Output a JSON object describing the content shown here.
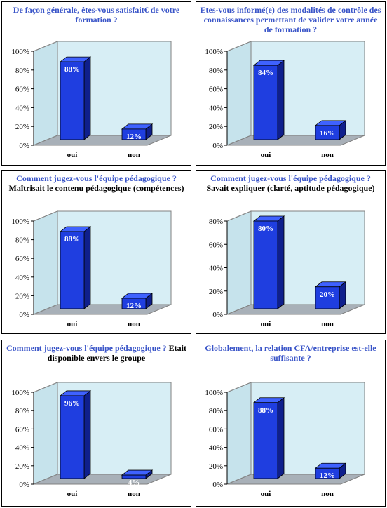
{
  "colors": {
    "question": "#3a55c8",
    "bar_front": "#1f3ee0",
    "bar_side": "#0f1f8c",
    "bar_top": "#3f62ff",
    "wall": "#d7eef5",
    "floor": "#a8b0b8"
  },
  "chart_data": [
    {
      "type": "bar",
      "title": "De façon générale, êtes-vous satisfait€ de votre formation ?",
      "subtitle": "",
      "categories": [
        "oui",
        "non"
      ],
      "values": [
        88,
        12
      ],
      "value_labels": [
        "88%",
        "12%"
      ],
      "yticks": [
        "0%",
        "20%",
        "40%",
        "60%",
        "80%",
        "100%"
      ],
      "ylim": [
        0,
        100
      ],
      "grid": false
    },
    {
      "type": "bar",
      "title": "Etes-vous informé(e) des modalités de contrôle des connaissances permettant de valider votre année de formation ?",
      "subtitle": "",
      "categories": [
        "oui",
        "non"
      ],
      "values": [
        84,
        16
      ],
      "value_labels": [
        "84%",
        "16%"
      ],
      "yticks": [
        "0%",
        "20%",
        "40%",
        "60%",
        "80%",
        "100%"
      ],
      "ylim": [
        0,
        100
      ],
      "grid": false
    },
    {
      "type": "bar",
      "title": "Comment jugez-vous l'équipe pédagogique ?",
      "subtitle": "Maîtrisait le contenu pédagogique (compétences)",
      "categories": [
        "oui",
        "non"
      ],
      "values": [
        88,
        12
      ],
      "value_labels": [
        "88%",
        "12%"
      ],
      "yticks": [
        "0%",
        "20%",
        "40%",
        "60%",
        "80%",
        "100%"
      ],
      "ylim": [
        0,
        100
      ],
      "grid": false
    },
    {
      "type": "bar",
      "title": "Comment jugez-vous l'équipe pédagogique ?",
      "subtitle": "Savait expliquer (clarté, aptitude pédagogique)",
      "categories": [
        "oui",
        "non"
      ],
      "values": [
        80,
        20
      ],
      "value_labels": [
        "80%",
        "20%"
      ],
      "yticks": [
        "0%",
        "20%",
        "40%",
        "60%",
        "80%"
      ],
      "ylim": [
        0,
        80
      ],
      "grid": false
    },
    {
      "type": "bar",
      "title": "Comment jugez-vous l'équipe pédagogique ?",
      "subtitle": "Etait disponible envers le groupe",
      "categories": [
        "oui",
        "non"
      ],
      "values": [
        96,
        4
      ],
      "value_labels": [
        "96%",
        "4%"
      ],
      "yticks": [
        "0%",
        "20%",
        "40%",
        "60%",
        "80%",
        "100%"
      ],
      "ylim": [
        0,
        100
      ],
      "grid": false
    },
    {
      "type": "bar",
      "title": "Globalement, la relation CFA/entreprise est-elle suffisante ?",
      "subtitle": "",
      "categories": [
        "oui",
        "non"
      ],
      "values": [
        88,
        12
      ],
      "value_labels": [
        "88%",
        "12%"
      ],
      "yticks": [
        "0%",
        "20%",
        "40%",
        "60%",
        "80%",
        "100%"
      ],
      "ylim": [
        0,
        100
      ],
      "grid": false
    }
  ]
}
